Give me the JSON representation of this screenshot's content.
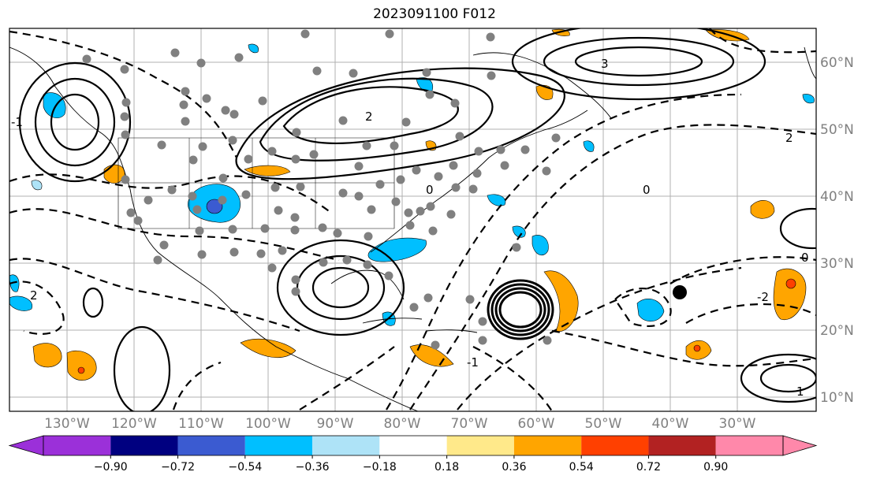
{
  "title": "2023091100 F012",
  "map": {
    "longitude_labels": [
      "130°W",
      "120°W",
      "110°W",
      "100°W",
      "90°W",
      "80°W",
      "70°W",
      "60°W",
      "50°W",
      "40°W",
      "30°W"
    ],
    "latitude_labels": [
      "60°N",
      "50°N",
      "40°N",
      "30°N",
      "20°N",
      "10°N"
    ],
    "contour_labels": [
      "-1",
      "0",
      "1",
      "2",
      "3",
      "-2"
    ],
    "grid": true
  },
  "colorbar": {
    "tick_labels": [
      "−0.90",
      "−0.72",
      "−0.54",
      "−0.36",
      "−0.18",
      "0.18",
      "0.36",
      "0.54",
      "0.72",
      "0.90"
    ],
    "colors": [
      "#9b30d9",
      "#000080",
      "#3b5bd1",
      "#00bfff",
      "#aee3f7",
      "#ffffff",
      "#ffe98a",
      "#ffa500",
      "#ff4000",
      "#b22222",
      "#ff88aa"
    ]
  }
}
